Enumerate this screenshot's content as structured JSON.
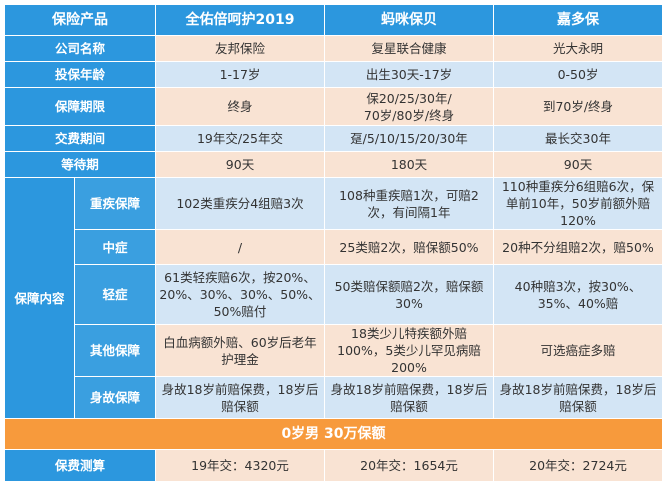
{
  "header": {
    "label": "保险产品",
    "products": [
      "全佑倍呵护2019",
      "蚂咪保贝",
      "嘉多保"
    ]
  },
  "rows": {
    "company": {
      "label": "公司名称",
      "values": [
        "友邦保险",
        "复星联合健康",
        "光大永明"
      ]
    },
    "age": {
      "label": "投保年龄",
      "values": [
        "1-17岁",
        "出生30天-17岁",
        "0-50岁"
      ]
    },
    "term": {
      "label": "保障期限",
      "values": [
        "终身",
        "保20/25/30年/\n70岁/80岁/终身",
        "到70岁/终身"
      ]
    },
    "pay": {
      "label": "交费期间",
      "values": [
        "19年交/25年交",
        "趸/5/10/15/20/30年",
        "最长交30年"
      ]
    },
    "wait": {
      "label": "等待期",
      "values": [
        "90天",
        "180天",
        "90天"
      ]
    }
  },
  "coverage": {
    "group_label": "保障内容",
    "items": [
      {
        "label": "重疾保障",
        "values": [
          "102类重疾分4组赔3次",
          "108种重疾赔1次，可赔2次，有间隔1年",
          "110种重疾分6组赔6次，保单前10年，50岁前额外赔120%"
        ]
      },
      {
        "label": "中症",
        "values": [
          "/",
          "25类赔2次，赔保额50%",
          "20种不分组赔2次，赔50%"
        ]
      },
      {
        "label": "轻症",
        "values": [
          "61类轻疾赔6次，按20%、20%、30%、30%、50%、50%赔付",
          "50类赔保额赔2次，赔保额30%",
          "40种赔3次，按30%、35%、40%赔"
        ]
      },
      {
        "label": "其他保障",
        "values": [
          "白血病额外赔、60岁后老年护理金",
          "18类少儿特疾额外赔100%，5类少儿罕见病赔200%",
          "可选癌症多赔"
        ]
      },
      {
        "label": "身故保障",
        "values": [
          "身故18岁前赔保费，18岁后赔保额",
          "身故18岁前赔保费，18岁后赔保额",
          "身故18岁前赔保费，18岁后赔保额"
        ]
      }
    ]
  },
  "banner": {
    "text": "0岁男 30万保额"
  },
  "premium": {
    "label": "保费测算",
    "values": [
      "19年交：4320元",
      "20年交：1654元",
      "20年交：2724元"
    ]
  },
  "colors": {
    "header": "#2c97de",
    "pink": "#f9e3d3",
    "blue": "#d3e5f5",
    "banner": "#f79a3c"
  }
}
